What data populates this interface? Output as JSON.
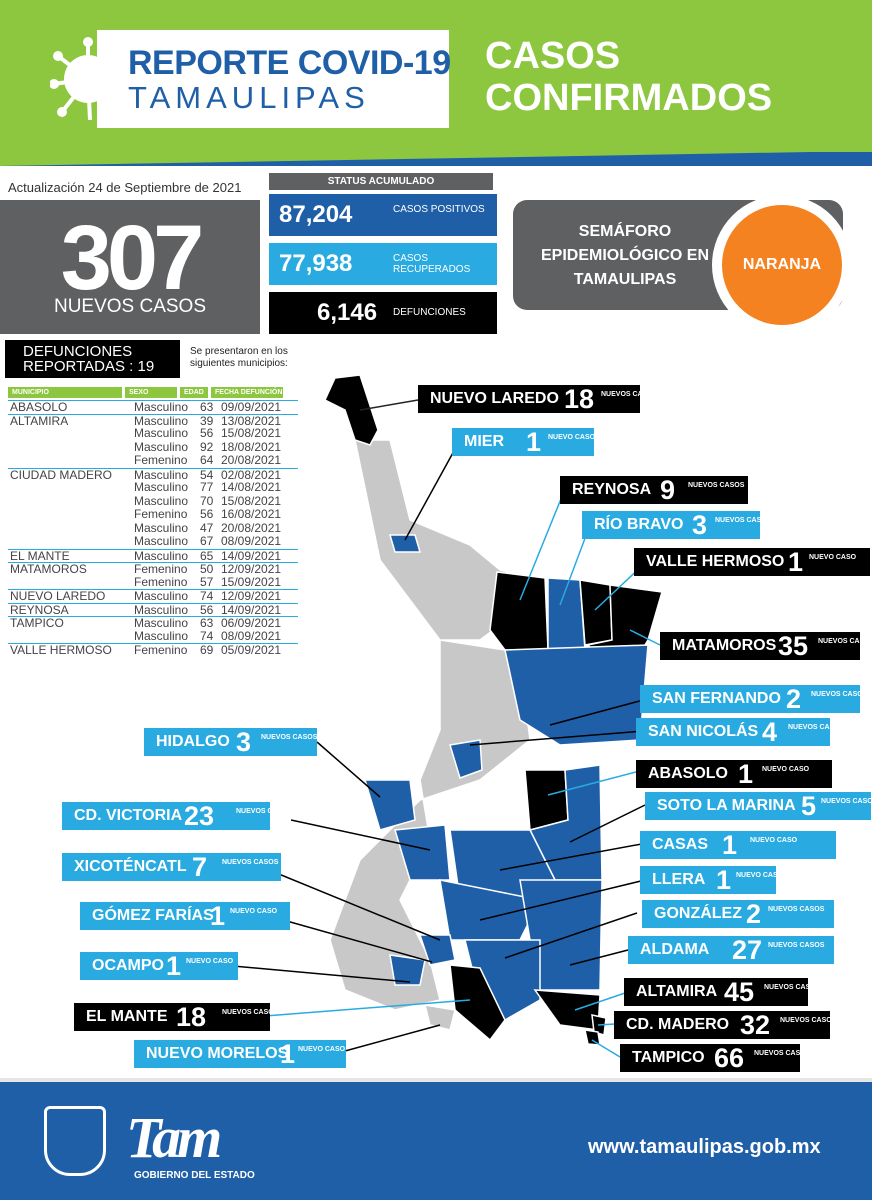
{
  "header": {
    "title_line1": "REPORTE COVID-19",
    "title_line2": "TAMAULIPAS",
    "section_line1": "CASOS",
    "section_line2": "CONFIRMADOS"
  },
  "update_text": "Actualización 24 de Septiembre de 2021",
  "new_cases": {
    "value": "307",
    "label": "NUEVOS CASOS"
  },
  "status": {
    "heading": "STATUS ACUMULADO",
    "items": [
      {
        "value": "87,204",
        "label": "CASOS POSITIVOS",
        "color": "#1f5fa8"
      },
      {
        "value": "77,938",
        "label": "CASOS RECUPERADOS",
        "color": "#29abe2"
      },
      {
        "value": "6,146",
        "label": "DEFUNCIONES",
        "color": "#000000"
      }
    ]
  },
  "semaforo": {
    "title": "SEMÁFORO EPIDEMIOLÓGICO EN TAMAULIPAS",
    "level": "NARANJA",
    "level_color": "#f58220"
  },
  "deaths": {
    "title": "DEFUNCIONES REPORTADAS : 19",
    "note": "Se presentaron en los siguientes municipios:",
    "headers": [
      "MUNICIPIO",
      "SEXO",
      "EDAD",
      "FECHA DEFUNCIÓN"
    ],
    "rows": [
      {
        "m": "ABASOLO",
        "s": "Masculino",
        "e": "63",
        "f": "09/09/2021"
      },
      {
        "m": "ALTAMIRA",
        "s": "Masculino",
        "e": "39",
        "f": "13/08/2021"
      },
      {
        "m": "",
        "s": "Masculino",
        "e": "56",
        "f": "15/08/2021"
      },
      {
        "m": "",
        "s": "Masculino",
        "e": "92",
        "f": "18/08/2021"
      },
      {
        "m": "",
        "s": "Femenino",
        "e": "64",
        "f": "20/08/2021"
      },
      {
        "m": "CIUDAD MADERO",
        "s": "Masculino",
        "e": "54",
        "f": "02/08/2021"
      },
      {
        "m": "",
        "s": "Masculino",
        "e": "77",
        "f": "14/08/2021"
      },
      {
        "m": "",
        "s": "Masculino",
        "e": "70",
        "f": "15/08/2021"
      },
      {
        "m": "",
        "s": "Femenino",
        "e": "56",
        "f": "16/08/2021"
      },
      {
        "m": "",
        "s": "Masculino",
        "e": "47",
        "f": "20/08/2021"
      },
      {
        "m": "",
        "s": "Masculino",
        "e": "67",
        "f": "08/09/2021"
      },
      {
        "m": "EL MANTE",
        "s": "Masculino",
        "e": "65",
        "f": "14/09/2021"
      },
      {
        "m": "MATAMOROS",
        "s": "Femenino",
        "e": "50",
        "f": "12/09/2021"
      },
      {
        "m": "",
        "s": "Femenino",
        "e": "57",
        "f": "15/09/2021"
      },
      {
        "m": "NUEVO LAREDO",
        "s": "Masculino",
        "e": "74",
        "f": "12/09/2021"
      },
      {
        "m": "REYNOSA",
        "s": "Masculino",
        "e": "56",
        "f": "14/09/2021"
      },
      {
        "m": "TAMPICO",
        "s": "Masculino",
        "e": "63",
        "f": "06/09/2021"
      },
      {
        "m": "",
        "s": "Masculino",
        "e": "74",
        "f": "08/09/2021"
      },
      {
        "m": "VALLE HERMOSO",
        "s": "Femenino",
        "e": "69",
        "f": "05/09/2021"
      }
    ]
  },
  "municipalities": [
    {
      "name": "NUEVO LAREDO",
      "cases": "18",
      "suffix": "NUEVOS CASOS",
      "style": "black"
    },
    {
      "name": "MIER",
      "cases": "1",
      "suffix": "NUEVO CASO",
      "style": "blue"
    },
    {
      "name": "REYNOSA",
      "cases": "9",
      "suffix": "NUEVOS CASOS",
      "style": "black"
    },
    {
      "name": "RÍO BRAVO",
      "cases": "3",
      "suffix": "NUEVOS CASOS",
      "style": "blue"
    },
    {
      "name": "VALLE HERMOSO",
      "cases": "1",
      "suffix": "NUEVO CASO",
      "style": "black"
    },
    {
      "name": "MATAMOROS",
      "cases": "35",
      "suffix": "NUEVOS CASOS",
      "style": "black"
    },
    {
      "name": "SAN FERNANDO",
      "cases": "2",
      "suffix": "NUEVOS CASOS",
      "style": "blue"
    },
    {
      "name": "SAN NICOLÁS",
      "cases": "4",
      "suffix": "NUEVOS CASOS",
      "style": "blue"
    },
    {
      "name": "HIDALGO",
      "cases": "3",
      "suffix": "NUEVOS CASOS",
      "style": "blue"
    },
    {
      "name": "ABASOLO",
      "cases": "1",
      "suffix": "NUEVO CASO",
      "style": "black"
    },
    {
      "name": "CD. VICTORIA",
      "cases": "23",
      "suffix": "NUEVOS CASOS",
      "style": "blue"
    },
    {
      "name": "SOTO LA MARINA",
      "cases": "5",
      "suffix": "NUEVOS CASOS",
      "style": "blue"
    },
    {
      "name": "XICOTÉNCATL",
      "cases": "7",
      "suffix": "NUEVOS CASOS",
      "style": "blue"
    },
    {
      "name": "CASAS",
      "cases": "1",
      "suffix": "NUEVO CASO",
      "style": "blue"
    },
    {
      "name": "LLERA",
      "cases": "1",
      "suffix": "NUEVO CASO",
      "style": "blue"
    },
    {
      "name": "GÓMEZ FARÍAS",
      "cases": "1",
      "suffix": "NUEVO CASO",
      "style": "blue"
    },
    {
      "name": "GONZÁLEZ",
      "cases": "2",
      "suffix": "NUEVOS CASOS",
      "style": "blue"
    },
    {
      "name": "OCAMPO",
      "cases": "1",
      "suffix": "NUEVO CASO",
      "style": "blue"
    },
    {
      "name": "ALDAMA",
      "cases": "27",
      "suffix": "NUEVOS CASOS",
      "style": "blue"
    },
    {
      "name": "EL MANTE",
      "cases": "18",
      "suffix": "NUEVOS CASOS",
      "style": "black"
    },
    {
      "name": "ALTAMIRA",
      "cases": "45",
      "suffix": "NUEVOS CASOS",
      "style": "black"
    },
    {
      "name": "CD. MADERO",
      "cases": "32",
      "suffix": "NUEVOS CASOS",
      "style": "black"
    },
    {
      "name": "NUEVO MORELOS",
      "cases": "1",
      "suffix": "NUEVO CASO",
      "style": "blue"
    },
    {
      "name": "TAMPICO",
      "cases": "66",
      "suffix": "NUEVOS CASOS",
      "style": "black"
    }
  ],
  "footer": {
    "logo_text": "Tam",
    "government": "GOBIERNO DEL ESTADO",
    "url": "www.tamaulipas.gob.mx"
  }
}
